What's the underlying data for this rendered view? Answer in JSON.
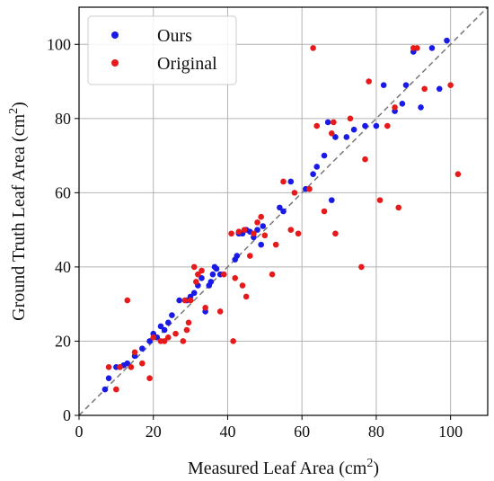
{
  "chart_data": {
    "type": "scatter",
    "xlabel": "Measured Leaf Area (cm",
    "ylabel": "Ground Truth Leaf Area (cm",
    "label_unit_power": "2",
    "label_close": ")",
    "xlim": [
      0,
      110
    ],
    "ylim": [
      0,
      110
    ],
    "xticks": [
      0,
      20,
      40,
      60,
      80,
      100
    ],
    "yticks": [
      0,
      20,
      40,
      60,
      80,
      100
    ],
    "grid": true,
    "legend_position": "top-left",
    "reference_line": {
      "style": "dashed",
      "color": "#777777",
      "from": [
        0,
        0
      ],
      "to": [
        110,
        110
      ]
    },
    "series": [
      {
        "name": "Ours",
        "color": "#1a1ae6",
        "points": [
          [
            7,
            7
          ],
          [
            8,
            10
          ],
          [
            10,
            13
          ],
          [
            12,
            13.5
          ],
          [
            13,
            14
          ],
          [
            15,
            16
          ],
          [
            17,
            18
          ],
          [
            19,
            20
          ],
          [
            20,
            22
          ],
          [
            21,
            21
          ],
          [
            22,
            24
          ],
          [
            23,
            23
          ],
          [
            24,
            25
          ],
          [
            25,
            27
          ],
          [
            27,
            31
          ],
          [
            29,
            31
          ],
          [
            30,
            32
          ],
          [
            31,
            33
          ],
          [
            32,
            35
          ],
          [
            33,
            37
          ],
          [
            34,
            28
          ],
          [
            35,
            35
          ],
          [
            35.5,
            36
          ],
          [
            36,
            38
          ],
          [
            36.5,
            40
          ],
          [
            37,
            39.5
          ],
          [
            38,
            38
          ],
          [
            42,
            42
          ],
          [
            42.5,
            43
          ],
          [
            43,
            49
          ],
          [
            44,
            49
          ],
          [
            45,
            50
          ],
          [
            46,
            49.5
          ],
          [
            47,
            48
          ],
          [
            48,
            50
          ],
          [
            49,
            46
          ],
          [
            49.5,
            51
          ],
          [
            54,
            56
          ],
          [
            55,
            55
          ],
          [
            57,
            63
          ],
          [
            61,
            61
          ],
          [
            63,
            65
          ],
          [
            64,
            67
          ],
          [
            66,
            70
          ],
          [
            67,
            79
          ],
          [
            68,
            58
          ],
          [
            69,
            75
          ],
          [
            72,
            75
          ],
          [
            74,
            77
          ],
          [
            77,
            78
          ],
          [
            80,
            78
          ],
          [
            82,
            89
          ],
          [
            85,
            82
          ],
          [
            87,
            84
          ],
          [
            88,
            89
          ],
          [
            90,
            98
          ],
          [
            92,
            83
          ],
          [
            95,
            99
          ],
          [
            97,
            88
          ],
          [
            99,
            101
          ]
        ]
      },
      {
        "name": "Original",
        "color": "#e61a1a",
        "points": [
          [
            8,
            13
          ],
          [
            10,
            7
          ],
          [
            11,
            13
          ],
          [
            13,
            31
          ],
          [
            14,
            13
          ],
          [
            15,
            17
          ],
          [
            17,
            14
          ],
          [
            19,
            10
          ],
          [
            20,
            21
          ],
          [
            22,
            20
          ],
          [
            23,
            20
          ],
          [
            24,
            21
          ],
          [
            26,
            22
          ],
          [
            28,
            20
          ],
          [
            28.5,
            31
          ],
          [
            29,
            23
          ],
          [
            29.5,
            25
          ],
          [
            30,
            31
          ],
          [
            31,
            40
          ],
          [
            31.5,
            36
          ],
          [
            32,
            38
          ],
          [
            33,
            39
          ],
          [
            34,
            29
          ],
          [
            38,
            28
          ],
          [
            39,
            38
          ],
          [
            41,
            49
          ],
          [
            41.5,
            20
          ],
          [
            42,
            37
          ],
          [
            43,
            49.5
          ],
          [
            44,
            35
          ],
          [
            44.5,
            50
          ],
          [
            45,
            32
          ],
          [
            46,
            43
          ],
          [
            47,
            49
          ],
          [
            48,
            52
          ],
          [
            49,
            53.5
          ],
          [
            50,
            48.5
          ],
          [
            52,
            38
          ],
          [
            53,
            46
          ],
          [
            55,
            63
          ],
          [
            57,
            50
          ],
          [
            58,
            60
          ],
          [
            59,
            49
          ],
          [
            62,
            61
          ],
          [
            63,
            99
          ],
          [
            64,
            78
          ],
          [
            66,
            55
          ],
          [
            68,
            76
          ],
          [
            68.5,
            79
          ],
          [
            69,
            49
          ],
          [
            73,
            80
          ],
          [
            76,
            40
          ],
          [
            77,
            69
          ],
          [
            78,
            90
          ],
          [
            81,
            58
          ],
          [
            83,
            78
          ],
          [
            85,
            83
          ],
          [
            86,
            56
          ],
          [
            90,
            99
          ],
          [
            91,
            99
          ],
          [
            93,
            88
          ],
          [
            100,
            89
          ],
          [
            102,
            65
          ]
        ]
      }
    ]
  }
}
